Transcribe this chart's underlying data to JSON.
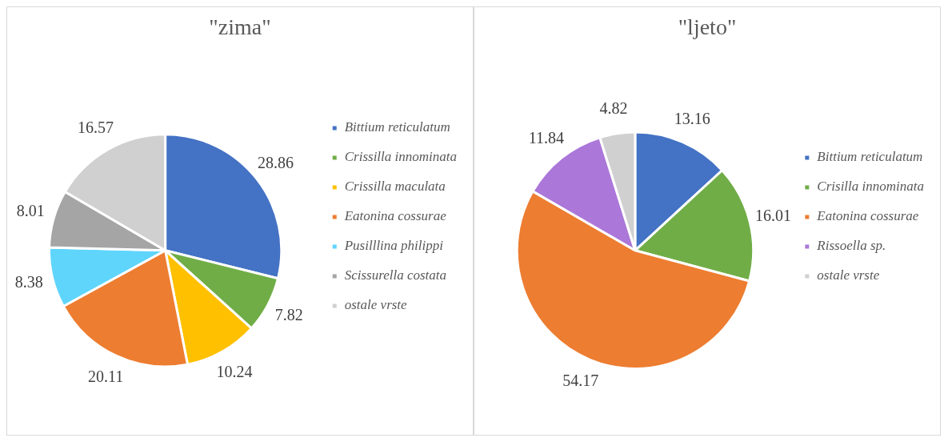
{
  "chart_data": [
    {
      "type": "pie",
      "title": "\"zima\"",
      "categories": [
        "Bittium reticulatum",
        "Crissilla innominata",
        "Crissilla maculata",
        "Eatonina cossurae",
        "Pusilllina philippi",
        "Scissurella costata",
        "ostale vrste"
      ],
      "values": [
        28.86,
        7.82,
        10.24,
        20.11,
        8.38,
        8.01,
        16.57
      ],
      "colors": [
        "#4472c4",
        "#70ad47",
        "#ffc000",
        "#ed7d31",
        "#5fd5fc",
        "#a5a5a5",
        "#d0d0d0"
      ],
      "data_labels": true,
      "legend": "right"
    },
    {
      "type": "pie",
      "title": "\"ljeto\"",
      "categories": [
        "Bittium reticulatum",
        "Crisilla innominata",
        "Eatonina cossurae",
        "Rissoella sp.",
        "ostale vrste"
      ],
      "values": [
        13.16,
        16.01,
        54.17,
        11.84,
        4.82
      ],
      "colors": [
        "#4472c4",
        "#70ad47",
        "#ed7d31",
        "#ab77d9",
        "#d0d0d0"
      ],
      "data_labels": true,
      "legend": "right"
    }
  ]
}
